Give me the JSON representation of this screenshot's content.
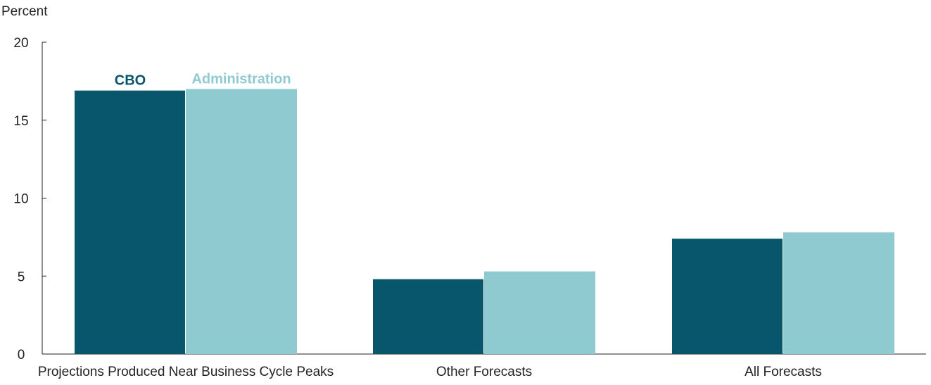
{
  "chart_data": {
    "type": "bar",
    "ylabel": "Percent",
    "ylim": [
      0,
      20
    ],
    "yticks": [
      0,
      5,
      10,
      15,
      20
    ],
    "categories": [
      "Projections Produced Near Business Cycle Peaks",
      "Other Forecasts",
      "All Forecasts"
    ],
    "series": [
      {
        "name": "CBO",
        "values": [
          16.9,
          4.8,
          7.4
        ],
        "color": "#07566c"
      },
      {
        "name": "Administration",
        "values": [
          17.0,
          5.3,
          7.8
        ],
        "color": "#8fcad1"
      }
    ],
    "legend_placement": "above first category bars",
    "grid": false
  }
}
